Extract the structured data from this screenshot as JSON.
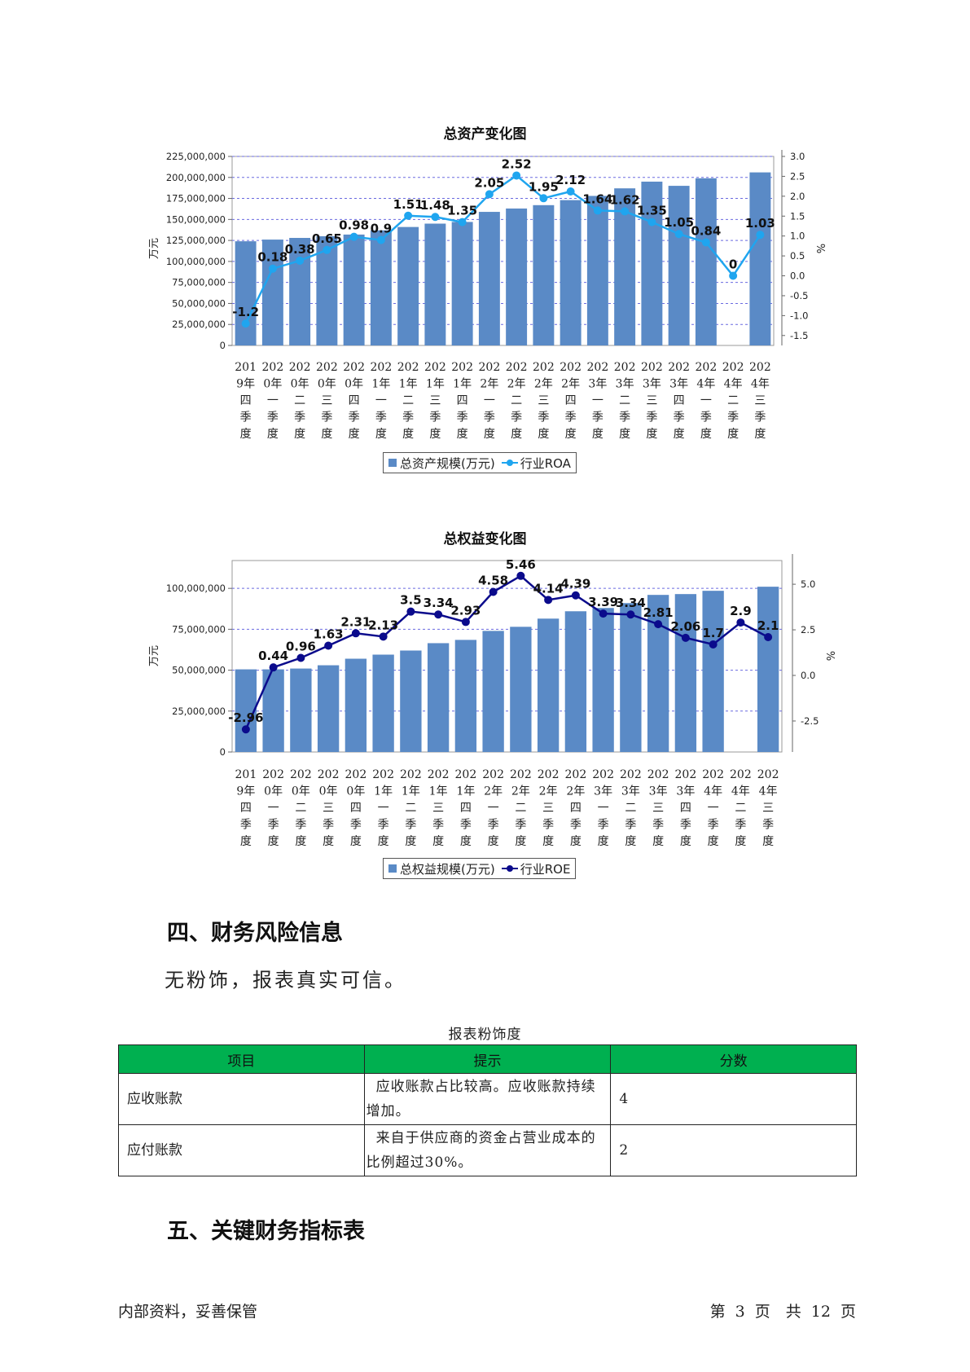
{
  "chart1": {
    "title": "总资产变化图",
    "y_left_label": "万元",
    "y_right_label": "%",
    "legend_bar": "总资产规模(万元)",
    "legend_line": "行业ROA"
  },
  "chart2": {
    "title": "总权益变化图",
    "y_left_label": "万元",
    "y_right_label": "%",
    "legend_bar": "总权益规模(万元)",
    "legend_line": "行业ROE"
  },
  "chart_data": [
    {
      "type": "bar",
      "title": "总资产变化图",
      "ylabel": "万元",
      "y2label": "%",
      "categories": [
        "2019年四季度",
        "2020年一季度",
        "2020年二季度",
        "2020年三季度",
        "2020年四季度",
        "2021年一季度",
        "2021年二季度",
        "2021年三季度",
        "2021年四季度",
        "2022年一季度",
        "2022年二季度",
        "2022年三季度",
        "2022年四季度",
        "2023年一季度",
        "2023年二季度",
        "2023年三季度",
        "2023年四季度",
        "2024年一季度",
        "2024年二季度",
        "2024年三季度"
      ],
      "ylim": [
        0,
        225000000
      ],
      "y_ticks": [
        "0",
        "25,000,000",
        "50,000,000",
        "75,000,000",
        "100,000,000",
        "125,000,000",
        "150,000,000",
        "175,000,000",
        "200,000,000",
        "225,000,000"
      ],
      "y2lim": [
        -1.75,
        3.0
      ],
      "y2_ticks": [
        "-1.5",
        "-1.0",
        "-0.5",
        "0.0",
        "0.5",
        "1.0",
        "1.5",
        "2.0",
        "2.5",
        "3.0"
      ],
      "series": [
        {
          "name": "总资产规模(万元)",
          "kind": "bar",
          "color": "#5a8ac6",
          "values": [
            124000000,
            126000000,
            128000000,
            130000000,
            132000000,
            137000000,
            141000000,
            145000000,
            147000000,
            159000000,
            163000000,
            167000000,
            173000000,
            178000000,
            187000000,
            195000000,
            190000000,
            199000000,
            null,
            206000000
          ]
        },
        {
          "name": "行业ROA",
          "kind": "line",
          "axis": "right",
          "color": "#1fa5ef",
          "values": [
            -1.2,
            0.18,
            0.38,
            0.65,
            0.98,
            0.9,
            1.51,
            1.48,
            1.35,
            2.05,
            2.52,
            1.95,
            2.12,
            1.64,
            1.62,
            1.35,
            1.05,
            0.84,
            0,
            1.03
          ],
          "labels": [
            "-1.2",
            "0.18",
            "0.38",
            "0.65",
            "0.98",
            "0.9",
            "1.51",
            "1.48",
            "1.35",
            "2.05",
            "2.52",
            "1.95",
            "2.12",
            "1.64",
            "1.62",
            "1.35",
            "1.05",
            "0.84",
            "0",
            "1.03"
          ]
        }
      ],
      "grid": true,
      "legend": "bottom"
    },
    {
      "type": "bar",
      "title": "总权益变化图",
      "ylabel": "万元",
      "y2label": "%",
      "categories": [
        "2019年四季度",
        "2020年一季度",
        "2020年二季度",
        "2020年三季度",
        "2020年四季度",
        "2021年一季度",
        "2021年二季度",
        "2021年三季度",
        "2021年四季度",
        "2022年一季度",
        "2022年二季度",
        "2022年三季度",
        "2022年四季度",
        "2023年一季度",
        "2023年二季度",
        "2023年三季度",
        "2023年四季度",
        "2024年一季度",
        "2024年二季度",
        "2024年三季度"
      ],
      "ylim": [
        0,
        117000000
      ],
      "y_ticks": [
        "0",
        "25,000,000",
        "50,000,000",
        "75,000,000",
        "100,000,000"
      ],
      "y2lim": [
        -4.2,
        6.3
      ],
      "y2_ticks": [
        "-2.5",
        "0.0",
        "2.5",
        "5.0"
      ],
      "series": [
        {
          "name": "总权益规模(万元)",
          "kind": "bar",
          "color": "#5a8ac6",
          "values": [
            50500000,
            50500000,
            51000000,
            53000000,
            57000000,
            59500000,
            62000000,
            66500000,
            68500000,
            74000000,
            76500000,
            81500000,
            86000000,
            88000000,
            91000000,
            96000000,
            96500000,
            98500000,
            null,
            101000000
          ]
        },
        {
          "name": "行业ROE",
          "kind": "line",
          "axis": "right",
          "color": "#0b0b8c",
          "values": [
            -2.96,
            0.44,
            0.96,
            1.63,
            2.31,
            2.13,
            3.5,
            3.34,
            2.93,
            4.58,
            5.46,
            4.14,
            4.39,
            3.39,
            3.34,
            2.81,
            2.06,
            1.7,
            2.9,
            2.1
          ],
          "labels": [
            "-2.96",
            "0.44",
            "0.96",
            "1.63",
            "2.31",
            "2.13",
            "3.5",
            "3.34",
            "2.93",
            "4.58",
            "5.46",
            "4.14",
            "4.39",
            "3.39",
            "3.34",
            "2.81",
            "2.06",
            "1.7",
            "2.9",
            "2.1"
          ]
        }
      ],
      "grid": true,
      "legend": "bottom"
    }
  ],
  "x_tick_lines": {
    "chart1": [
      [
        "201",
        "9年",
        "四",
        "季",
        "度"
      ],
      [
        "202",
        "0年",
        "一",
        "季",
        "度"
      ],
      [
        "202",
        "0年",
        "二",
        "季",
        "度"
      ],
      [
        "202",
        "0年",
        "三",
        "季",
        "度"
      ],
      [
        "202",
        "0年",
        "四",
        "季",
        "度"
      ],
      [
        "202",
        "1年",
        "一",
        "季",
        "度"
      ],
      [
        "202",
        "1年",
        "二",
        "季",
        "度"
      ],
      [
        "202",
        "1年",
        "三",
        "季",
        "度"
      ],
      [
        "202",
        "1年",
        "四",
        "季",
        "度"
      ],
      [
        "202",
        "2年",
        "一",
        "季",
        "度"
      ],
      [
        "202",
        "2年",
        "二",
        "季",
        "度"
      ],
      [
        "202",
        "2年",
        "三",
        "季",
        "度"
      ],
      [
        "202",
        "2年",
        "四",
        "季",
        "度"
      ],
      [
        "202",
        "3年",
        "一",
        "季",
        "度"
      ],
      [
        "202",
        "3年",
        "二",
        "季",
        "度"
      ],
      [
        "202",
        "3年",
        "三",
        "季",
        "度"
      ],
      [
        "202",
        "3年",
        "四",
        "季",
        "度"
      ],
      [
        "202",
        "4年",
        "一",
        "季",
        "度"
      ],
      [
        "202",
        "4年",
        "二",
        "季",
        "度"
      ],
      [
        "202",
        "4年",
        "三",
        "季",
        "度"
      ]
    ],
    "chart2": [
      [
        "201",
        "9年",
        "四",
        "季",
        "度"
      ],
      [
        "202",
        "0年",
        "一",
        "季",
        "度"
      ],
      [
        "202",
        "0年",
        "二",
        "季",
        "度"
      ],
      [
        "202",
        "0年",
        "三",
        "季",
        "度"
      ],
      [
        "202",
        "0年",
        "四",
        "季",
        "度"
      ],
      [
        "202",
        "1年",
        "一",
        "季",
        "度"
      ],
      [
        "202",
        "1年",
        "二",
        "季",
        "度"
      ],
      [
        "202",
        "1年",
        "三",
        "季",
        "度"
      ],
      [
        "202",
        "1年",
        "四",
        "季",
        "度"
      ],
      [
        "202",
        "2年",
        "一",
        "季",
        "度"
      ],
      [
        "202",
        "2年",
        "二",
        "季",
        "度"
      ],
      [
        "202",
        "2年",
        "三",
        "季",
        "度"
      ],
      [
        "202",
        "2年",
        "四",
        "季",
        "度"
      ],
      [
        "202",
        "3年",
        "一",
        "季",
        "度"
      ],
      [
        "202",
        "3年",
        "二",
        "季",
        "度"
      ],
      [
        "202",
        "3年",
        "三",
        "季",
        "度"
      ],
      [
        "202",
        "3年",
        "四",
        "季",
        "度"
      ],
      [
        "202",
        "4年",
        "一",
        "季",
        "度"
      ],
      [
        "202",
        "4年",
        "二",
        "季",
        "度"
      ],
      [
        "202",
        "4年",
        "三",
        "季",
        "度"
      ]
    ]
  },
  "section4": {
    "heading": "四、财务风险信息",
    "paragraph": "无粉饰，报表真实可信。",
    "table_caption": "报表粉饰度",
    "headers": [
      "项目",
      "提示",
      "分数"
    ],
    "rows": [
      {
        "item": "应收账款",
        "hint": "应收账款占比较高。应收账款持续增加。",
        "score": "4"
      },
      {
        "item": "应付账款",
        "hint": "来自于供应商的资金占营业成本的比例超过30%。",
        "score": "2"
      }
    ]
  },
  "section5": {
    "heading": "五、关键财务指标表"
  },
  "footer": {
    "left": "内部资料，妥善保管",
    "right": "第 3 页　共 12 页"
  }
}
